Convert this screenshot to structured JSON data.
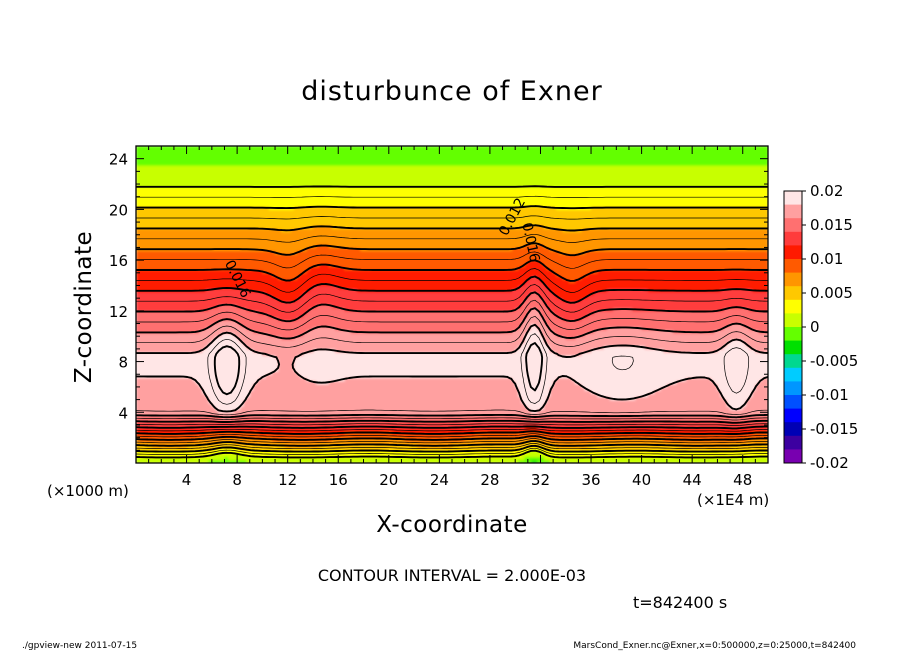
{
  "chart_data": {
    "type": "heatmap",
    "subtype": "filled-contour",
    "title": "disturbunce of Exner",
    "xlabel": "X-coordinate",
    "ylabel": "Z-coordinate",
    "x_unit_label": "(×1000 m)",
    "x_scale_label": "(×1E4 m)",
    "xlim": [
      0,
      50
    ],
    "ylim": [
      0,
      25
    ],
    "xticks": [
      "4",
      "8",
      "12",
      "16",
      "20",
      "24",
      "28",
      "32",
      "36",
      "40",
      "44",
      "48"
    ],
    "yticks": [
      "4",
      "8",
      "12",
      "16",
      "20",
      "24"
    ],
    "colorbar": {
      "range": [
        -0.02,
        0.02
      ],
      "labels": [
        "0.02",
        "0.015",
        "0.01",
        "0.005",
        "0",
        "-0.005",
        "-0.01",
        "-0.015",
        "-0.02"
      ],
      "colors": [
        "#ffe6e6",
        "#ffa0a0",
        "#ff7070",
        "#ff3c3c",
        "#ff1a00",
        "#ff5a00",
        "#ff9600",
        "#ffc800",
        "#ffff00",
        "#c8ff00",
        "#64ff00",
        "#00e000",
        "#00d890",
        "#00ccff",
        "#0096ff",
        "#0050ff",
        "#0000ff",
        "#0000b4",
        "#3c00a0",
        "#7800b0"
      ]
    },
    "contour_labels": [
      {
        "text": "0.016",
        "x": 8.0,
        "y": 14.5
      },
      {
        "text": "0.012",
        "x": 29.8,
        "y": 19.4
      },
      {
        "text": "0.016",
        "x": 31.2,
        "y": 17.4
      }
    ],
    "contour_interval": "CONTOUR INTERVAL = 2.000E-03",
    "time_label": "t=842400 s"
  },
  "footer": {
    "left": "./gpview-new   2011-07-15",
    "right": "MarsCond_Exner.nc@Exner,x=0:500000,z=0:25000,t=842400"
  }
}
